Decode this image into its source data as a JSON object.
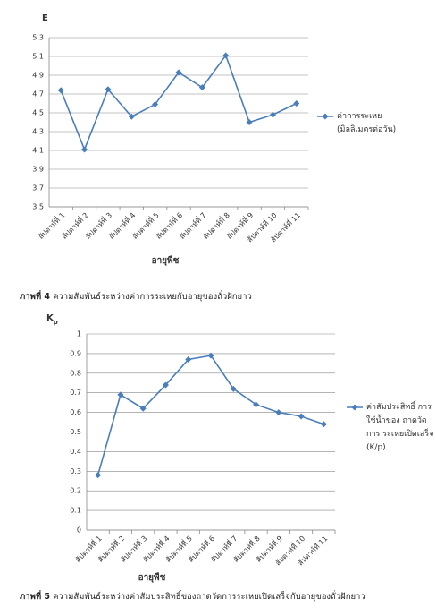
{
  "chart_data": [
    {
      "type": "line",
      "y_label": "E",
      "x_label": "อายุพืช",
      "categories": [
        "สัปดาห์ที่ 1",
        "สัปดาห์ที่ 2",
        "สัปดาห์ที่ 3",
        "สัปดาห์ที่ 4",
        "สัปดาห์ที่ 5",
        "สัปดาห์ที่ 6",
        "สัปดาห์ที่ 7",
        "สัปดาห์ที่ 8",
        "สัปดาห์ที่ 9",
        "สัปดาห์ที่ 10",
        "สัปดาห์ที่ 11"
      ],
      "series": [
        {
          "name": "ค่าการระเหย (มิลลิเมตรต่อวัน)",
          "color": "#4a7ebb",
          "values": [
            4.74,
            4.11,
            4.75,
            4.46,
            4.59,
            4.93,
            4.77,
            5.11,
            4.4,
            4.48,
            4.6
          ]
        }
      ],
      "ylim": [
        3.5,
        5.3
      ],
      "yticks": [
        3.5,
        3.7,
        3.9,
        4.1,
        4.3,
        4.5,
        4.7,
        4.9,
        5.1,
        5.3
      ],
      "grid": true,
      "legend": "right",
      "caption_label": "ภาพที่ 4",
      "caption": "ความสัมพันธ์ระหว่างค่าการระเหยกับอายุของถั่วฝักยาว"
    },
    {
      "type": "line",
      "y_label": "K",
      "y_label_sub": "p",
      "x_label": "อายุพืช",
      "categories": [
        "สัปดาห์ที่ 1",
        "สัปดาห์ที่ 2",
        "สัปดาห์ที่ 3",
        "สัปดาห์ที่ 4",
        "สัปดาห์ที่ 5",
        "สัปดาห์ที่ 6",
        "สัปดาห์ที่ 7",
        "สัปดาห์ที่ 8",
        "สัปดาห์ที่ 9",
        "สัปดาห์ที่ 10",
        "สัปดาห์ที่ 11"
      ],
      "series": [
        {
          "name": "ค่าสัมประสิทธิ์ การใช้น้ำของ ถาดวัดการ ระเหยเปิดเสร็จ (K/p)",
          "color": "#4a7ebb",
          "values": [
            0.28,
            0.69,
            0.62,
            0.74,
            0.87,
            0.89,
            0.72,
            0.64,
            0.6,
            0.58,
            0.54
          ]
        }
      ],
      "ylim": [
        0,
        1
      ],
      "yticks": [
        0,
        0.1,
        0.2,
        0.3,
        0.4,
        0.5,
        0.6,
        0.7,
        0.8,
        0.9,
        1
      ],
      "grid": true,
      "legend": "right",
      "caption_label": "ภาพที่ 5",
      "caption": "ความสัมพันธ์ระหว่างค่าสัมประสิทธิ์ของถาดวัดการระเหยเปิดเสร็จกับอายุของถั่วฝักยาว"
    }
  ]
}
